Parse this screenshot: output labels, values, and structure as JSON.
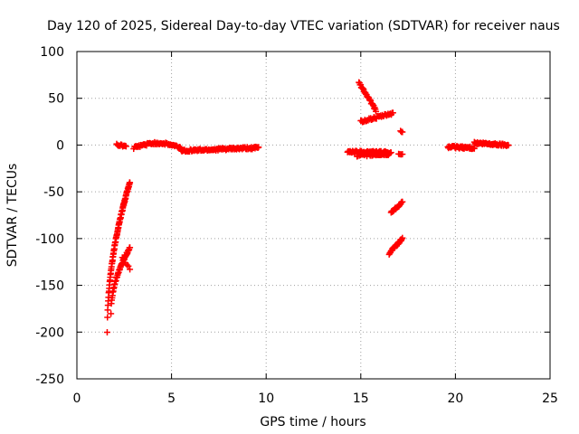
{
  "chart_data": {
    "type": "scatter",
    "title": "Day 120 of 2025, Sidereal Day-to-day VTEC variation (SDTVAR) for receiver naus",
    "xlabel": "GPS time / hours",
    "ylabel": "SDTVAR / TECUs",
    "xlim": [
      0,
      25
    ],
    "ylim": [
      -250,
      100
    ],
    "xticks": [
      "0",
      "5",
      "10",
      "15",
      "20",
      "25"
    ],
    "yticks": [
      "100",
      "50",
      "0",
      "-50",
      "-100",
      "-150",
      "-200",
      "-250"
    ],
    "grid": true,
    "marker": "plus",
    "color": "#ff0000",
    "segments": [
      {
        "name": "steep-rise-a",
        "x0": 1.6,
        "x1": 2.8,
        "y0": -200,
        "y1": -40,
        "shape": "sqrt",
        "n": 90
      },
      {
        "name": "steep-rise-b",
        "x0": 1.8,
        "x1": 2.8,
        "y0": -180,
        "y1": -110,
        "shape": "sqrt",
        "n": 50
      },
      {
        "name": "tail-b",
        "x0": 2.4,
        "x1": 2.8,
        "y0": -120,
        "y1": -132,
        "shape": "linear",
        "n": 6
      },
      {
        "name": "early-flat",
        "x0": 2.1,
        "x1": 2.6,
        "y0": 0,
        "y1": -1,
        "shape": "linear",
        "n": 12
      },
      {
        "name": "early-hump",
        "x0": 3.0,
        "x1": 5.5,
        "y0": -3,
        "y1": -3,
        "shape": "hump",
        "amp": 5,
        "n": 60
      },
      {
        "name": "morning-band",
        "x0": 5.5,
        "x1": 9.6,
        "y0": -6,
        "y1": -3,
        "shape": "linear",
        "n": 110
      },
      {
        "name": "band-14h",
        "x0": 14.3,
        "x1": 16.6,
        "y0": -7,
        "y1": -8,
        "shape": "linear",
        "n": 70
      },
      {
        "name": "band-14h-low",
        "x0": 14.8,
        "x1": 16.5,
        "y0": -11,
        "y1": -10,
        "shape": "linear",
        "n": 40
      },
      {
        "name": "descending-arc",
        "x0": 14.9,
        "x1": 15.8,
        "y0": 67,
        "y1": 37,
        "shape": "linear",
        "n": 30
      },
      {
        "name": "rising-line",
        "x0": 15.0,
        "x1": 16.7,
        "y0": 25,
        "y1": 34,
        "shape": "linear",
        "n": 40
      },
      {
        "name": "short-pos",
        "x0": 17.1,
        "x1": 17.2,
        "y0": 14,
        "y1": 14,
        "shape": "linear",
        "n": 3
      },
      {
        "name": "short-neg",
        "x0": 17.0,
        "x1": 17.2,
        "y0": -9,
        "y1": -10,
        "shape": "linear",
        "n": 4
      },
      {
        "name": "mid-neg-line",
        "x0": 16.6,
        "x1": 17.2,
        "y0": -72,
        "y1": -61,
        "shape": "linear",
        "n": 20
      },
      {
        "name": "low-neg-line",
        "x0": 16.5,
        "x1": 17.2,
        "y0": -116,
        "y1": -100,
        "shape": "linear",
        "n": 22
      },
      {
        "name": "evening-band",
        "x0": 19.6,
        "x1": 21.0,
        "y0": -2,
        "y1": -3,
        "shape": "linear",
        "n": 45
      },
      {
        "name": "late-band",
        "x0": 21.0,
        "x1": 22.8,
        "y0": 2,
        "y1": 0,
        "shape": "linear",
        "n": 55
      }
    ]
  }
}
